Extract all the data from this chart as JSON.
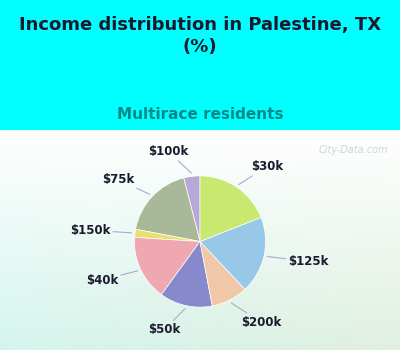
{
  "title": "Income distribution in Palestine, TX\n(%)",
  "subtitle": "Multirace residents",
  "watermark": "City-Data.com",
  "slices": [
    {
      "label": "$100k",
      "value": 4,
      "color": "#b8a8d8"
    },
    {
      "label": "$75k",
      "value": 18,
      "color": "#a8b898"
    },
    {
      "label": "$150k",
      "value": 2,
      "color": "#e8e070"
    },
    {
      "label": "$40k",
      "value": 16,
      "color": "#f0a8b0"
    },
    {
      "label": "$50k",
      "value": 13,
      "color": "#8888cc"
    },
    {
      "label": "$200k",
      "value": 9,
      "color": "#f0c8a8"
    },
    {
      "label": "$125k",
      "value": 19,
      "color": "#98c8e8"
    },
    {
      "label": "$30k",
      "value": 19,
      "color": "#c8e870"
    }
  ],
  "bg_top": "#00ffff",
  "title_color": "#1a1a2e",
  "subtitle_color": "#008888",
  "label_color": "#1a1a2e",
  "label_fontsize": 8.5,
  "title_fontsize": 13,
  "subtitle_fontsize": 11,
  "watermark_color": "#aabbcc",
  "watermark_alpha": 0.6
}
